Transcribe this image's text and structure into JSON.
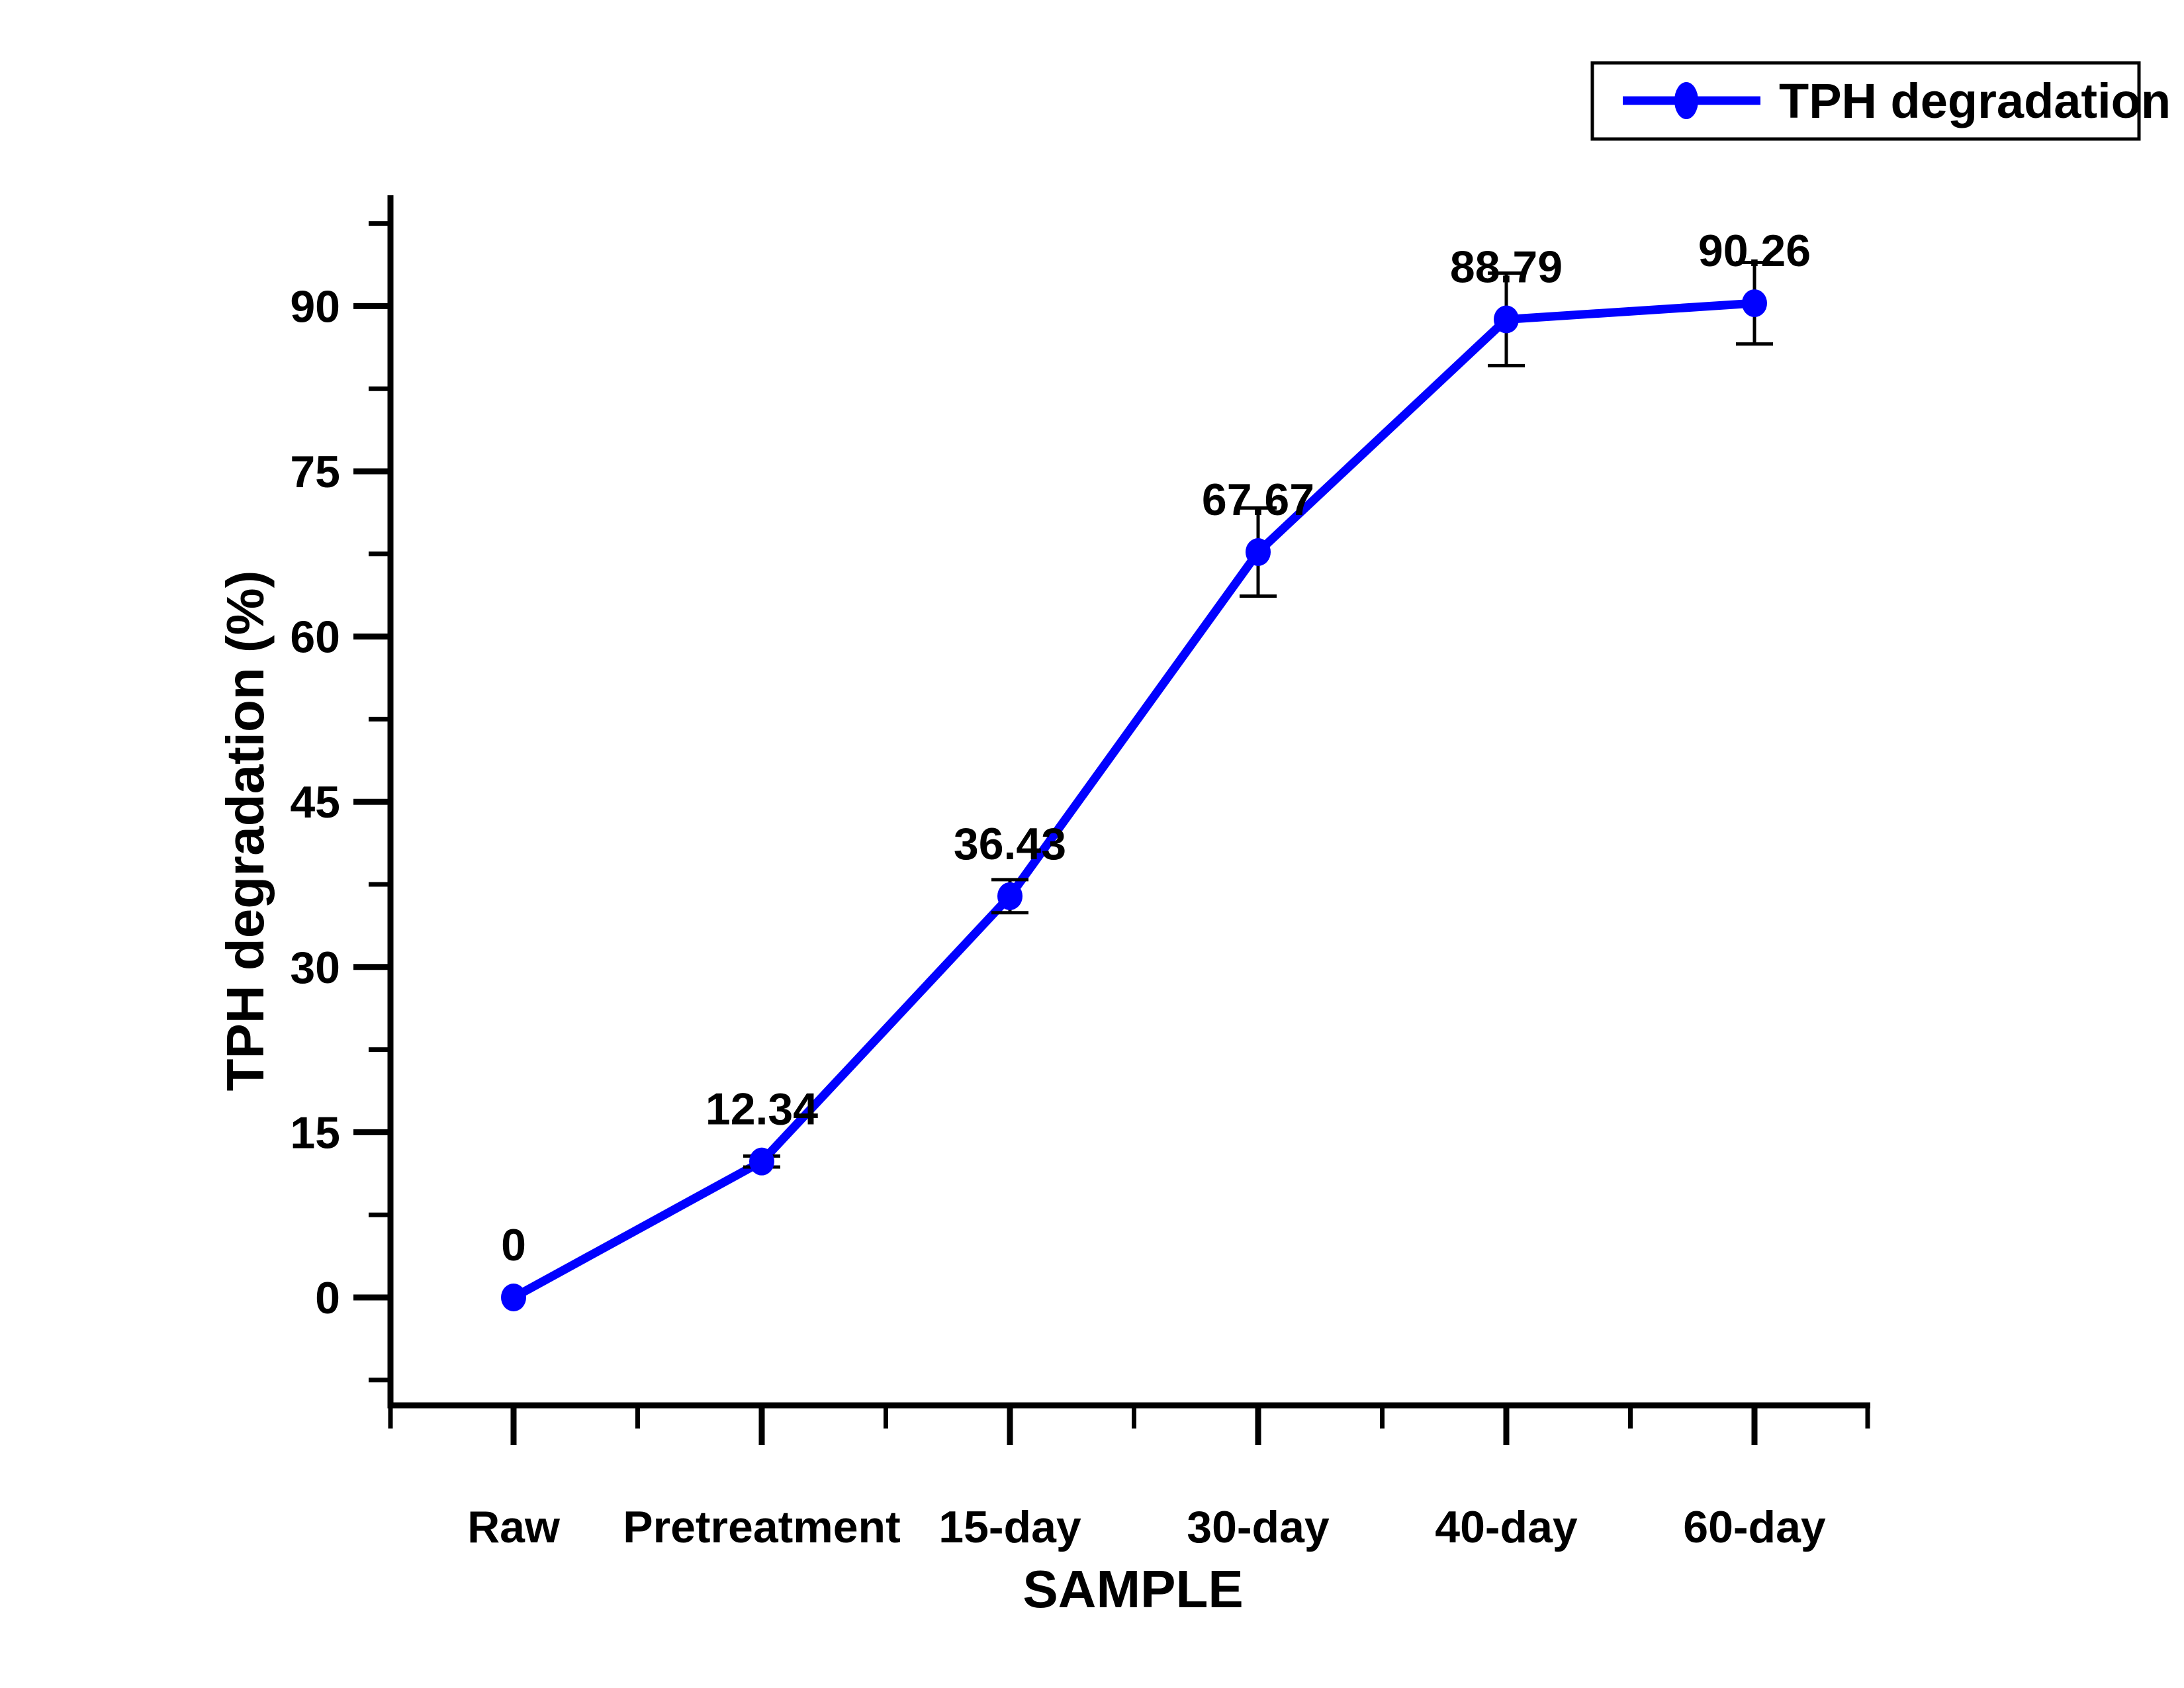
{
  "legend": {
    "label": "TPH degradation"
  },
  "chart_data": {
    "type": "line",
    "title": "",
    "xlabel": "SAMPLE",
    "ylabel": "TPH degradation (%)",
    "categories": [
      "Raw",
      "Pretreatment",
      "15-day",
      "30-day",
      "40-day",
      "60-day"
    ],
    "series": [
      {
        "name": "TPH degradation",
        "values": [
          0,
          12.34,
          36.43,
          67.67,
          88.79,
          90.26
        ],
        "errors": [
          0,
          0.5,
          1.5,
          4.0,
          4.2,
          3.7
        ],
        "data_labels": [
          "0",
          "12.34",
          "36.43",
          "67.67",
          "88.79",
          "90.26"
        ],
        "color": "#0101ff"
      }
    ],
    "ylim": [
      -10,
      100
    ],
    "yticks": [
      0,
      15,
      30,
      45,
      60,
      75,
      90
    ],
    "ytick_minor_step": 7.5,
    "grid": false,
    "legend_position": "top-right",
    "axis_color": "#000000",
    "error_bar_color": "#000000"
  }
}
